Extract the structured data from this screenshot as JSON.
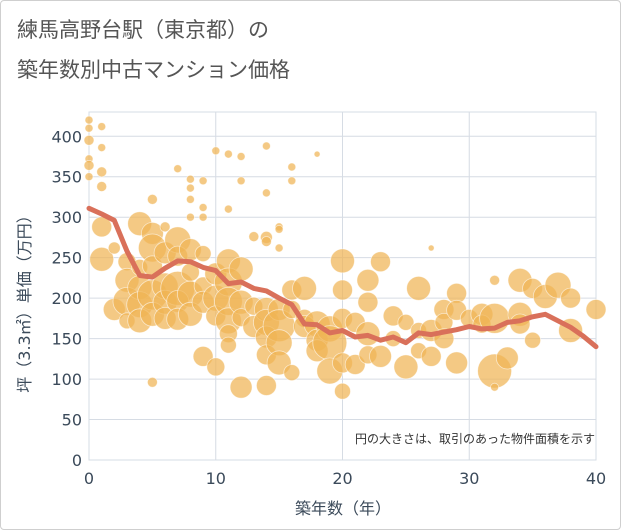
{
  "title_line1": "練馬高野台駅（東京都）の",
  "title_line2": "築年数別中古マンション価格",
  "chart_data": {
    "type": "scatter",
    "xlabel": "築年数（年）",
    "ylabel": "坪（3.3㎡）単価（万円）",
    "xlim": [
      0,
      40
    ],
    "ylim": [
      0,
      430
    ],
    "x_ticks": [
      "0",
      "10",
      "20",
      "30",
      "40"
    ],
    "y_ticks": [
      "0",
      "50",
      "100",
      "150",
      "200",
      "250",
      "300",
      "350",
      "400"
    ],
    "grid": true,
    "note": "円の大きさは、取引のあった物件面積を示す",
    "bubble_color": "#f0b454",
    "line_color": "#d9705a",
    "trend_line": {
      "x": [
        0,
        1,
        2,
        3,
        4,
        5,
        6,
        7,
        8,
        9,
        10,
        11,
        12,
        13,
        14,
        15,
        16,
        17,
        18,
        19,
        20,
        21,
        22,
        23,
        24,
        25,
        26,
        27,
        28,
        29,
        30,
        31,
        32,
        33,
        34,
        35,
        36,
        37,
        38,
        39,
        40
      ],
      "y": [
        311,
        304,
        296,
        258,
        228,
        226,
        237,
        246,
        245,
        238,
        234,
        218,
        220,
        212,
        209,
        200,
        192,
        168,
        167,
        157,
        160,
        152,
        154,
        148,
        152,
        145,
        157,
        155,
        158,
        161,
        165,
        162,
        163,
        170,
        172,
        177,
        180,
        172,
        164,
        153,
        140
      ]
    },
    "points": [
      {
        "x": 0,
        "y": 420,
        "s": 4
      },
      {
        "x": 0,
        "y": 410,
        "s": 4
      },
      {
        "x": 0,
        "y": 395,
        "s": 5
      },
      {
        "x": 0,
        "y": 372,
        "s": 4
      },
      {
        "x": 0,
        "y": 364,
        "s": 5
      },
      {
        "x": 0,
        "y": 350,
        "s": 4
      },
      {
        "x": 1,
        "y": 412,
        "s": 4
      },
      {
        "x": 1,
        "y": 386,
        "s": 4
      },
      {
        "x": 1,
        "y": 356,
        "s": 5
      },
      {
        "x": 1,
        "y": 338,
        "s": 5
      },
      {
        "x": 1,
        "y": 288,
        "s": 10
      },
      {
        "x": 1,
        "y": 248,
        "s": 12
      },
      {
        "x": 2,
        "y": 262,
        "s": 6
      },
      {
        "x": 2,
        "y": 186,
        "s": 11
      },
      {
        "x": 3,
        "y": 245,
        "s": 9
      },
      {
        "x": 3,
        "y": 222,
        "s": 12
      },
      {
        "x": 3,
        "y": 196,
        "s": 14
      },
      {
        "x": 3,
        "y": 172,
        "s": 8
      },
      {
        "x": 4,
        "y": 292,
        "s": 12
      },
      {
        "x": 4,
        "y": 238,
        "s": 8
      },
      {
        "x": 4,
        "y": 213,
        "s": 12
      },
      {
        "x": 4,
        "y": 192,
        "s": 13
      },
      {
        "x": 4,
        "y": 172,
        "s": 12
      },
      {
        "x": 5,
        "y": 322,
        "s": 5
      },
      {
        "x": 5,
        "y": 280,
        "s": 11
      },
      {
        "x": 5,
        "y": 262,
        "s": 14
      },
      {
        "x": 5,
        "y": 240,
        "s": 10
      },
      {
        "x": 5,
        "y": 204,
        "s": 15
      },
      {
        "x": 5,
        "y": 180,
        "s": 12
      },
      {
        "x": 5,
        "y": 96,
        "s": 5
      },
      {
        "x": 6,
        "y": 288,
        "s": 5
      },
      {
        "x": 6,
        "y": 256,
        "s": 11
      },
      {
        "x": 6,
        "y": 215,
        "s": 13
      },
      {
        "x": 6,
        "y": 195,
        "s": 12
      },
      {
        "x": 6,
        "y": 175,
        "s": 11
      },
      {
        "x": 7,
        "y": 360,
        "s": 4
      },
      {
        "x": 7,
        "y": 272,
        "s": 13
      },
      {
        "x": 7,
        "y": 252,
        "s": 10
      },
      {
        "x": 7,
        "y": 212,
        "s": 17
      },
      {
        "x": 7,
        "y": 196,
        "s": 11
      },
      {
        "x": 7,
        "y": 174,
        "s": 11
      },
      {
        "x": 8,
        "y": 347,
        "s": 4
      },
      {
        "x": 8,
        "y": 336,
        "s": 4
      },
      {
        "x": 8,
        "y": 322,
        "s": 4
      },
      {
        "x": 8,
        "y": 300,
        "s": 4
      },
      {
        "x": 8,
        "y": 260,
        "s": 11
      },
      {
        "x": 8,
        "y": 232,
        "s": 9
      },
      {
        "x": 8,
        "y": 205,
        "s": 13
      },
      {
        "x": 8,
        "y": 180,
        "s": 12
      },
      {
        "x": 9,
        "y": 345,
        "s": 4
      },
      {
        "x": 9,
        "y": 312,
        "s": 4
      },
      {
        "x": 9,
        "y": 300,
        "s": 4
      },
      {
        "x": 9,
        "y": 255,
        "s": 8
      },
      {
        "x": 9,
        "y": 215,
        "s": 9
      },
      {
        "x": 9,
        "y": 195,
        "s": 11
      },
      {
        "x": 9,
        "y": 128,
        "s": 10
      },
      {
        "x": 10,
        "y": 382,
        "s": 4
      },
      {
        "x": 10,
        "y": 230,
        "s": 11
      },
      {
        "x": 10,
        "y": 200,
        "s": 13
      },
      {
        "x": 10,
        "y": 178,
        "s": 10
      },
      {
        "x": 10,
        "y": 115,
        "s": 9
      },
      {
        "x": 11,
        "y": 378,
        "s": 4
      },
      {
        "x": 11,
        "y": 310,
        "s": 4
      },
      {
        "x": 11,
        "y": 246,
        "s": 12
      },
      {
        "x": 11,
        "y": 220,
        "s": 14
      },
      {
        "x": 11,
        "y": 196,
        "s": 14
      },
      {
        "x": 11,
        "y": 172,
        "s": 13
      },
      {
        "x": 11,
        "y": 156,
        "s": 9
      },
      {
        "x": 11,
        "y": 142,
        "s": 8
      },
      {
        "x": 12,
        "y": 375,
        "s": 4
      },
      {
        "x": 12,
        "y": 345,
        "s": 4
      },
      {
        "x": 12,
        "y": 236,
        "s": 12
      },
      {
        "x": 12,
        "y": 195,
        "s": 12
      },
      {
        "x": 12,
        "y": 176,
        "s": 9
      },
      {
        "x": 12,
        "y": 90,
        "s": 11
      },
      {
        "x": 13,
        "y": 276,
        "s": 5
      },
      {
        "x": 13,
        "y": 190,
        "s": 9
      },
      {
        "x": 13,
        "y": 165,
        "s": 11
      },
      {
        "x": 14,
        "y": 388,
        "s": 4
      },
      {
        "x": 14,
        "y": 330,
        "s": 4
      },
      {
        "x": 14,
        "y": 275,
        "s": 6
      },
      {
        "x": 14,
        "y": 270,
        "s": 5
      },
      {
        "x": 14,
        "y": 186,
        "s": 12
      },
      {
        "x": 14,
        "y": 170,
        "s": 13
      },
      {
        "x": 14,
        "y": 152,
        "s": 11
      },
      {
        "x": 14,
        "y": 130,
        "s": 10
      },
      {
        "x": 14,
        "y": 92,
        "s": 10
      },
      {
        "x": 15,
        "y": 288,
        "s": 4
      },
      {
        "x": 15,
        "y": 285,
        "s": 4
      },
      {
        "x": 15,
        "y": 262,
        "s": 4
      },
      {
        "x": 15,
        "y": 186,
        "s": 11
      },
      {
        "x": 15,
        "y": 166,
        "s": 16
      },
      {
        "x": 15,
        "y": 145,
        "s": 13
      },
      {
        "x": 15,
        "y": 120,
        "s": 12
      },
      {
        "x": 16,
        "y": 362,
        "s": 4
      },
      {
        "x": 16,
        "y": 345,
        "s": 4
      },
      {
        "x": 16,
        "y": 210,
        "s": 10
      },
      {
        "x": 16,
        "y": 186,
        "s": 9
      },
      {
        "x": 16,
        "y": 108,
        "s": 8
      },
      {
        "x": 17,
        "y": 212,
        "s": 12
      },
      {
        "x": 17,
        "y": 175,
        "s": 9
      },
      {
        "x": 17,
        "y": 165,
        "s": 11
      },
      {
        "x": 18,
        "y": 378,
        "s": 3
      },
      {
        "x": 18,
        "y": 168,
        "s": 13
      },
      {
        "x": 18,
        "y": 148,
        "s": 11
      },
      {
        "x": 18,
        "y": 135,
        "s": 11
      },
      {
        "x": 19,
        "y": 162,
        "s": 13
      },
      {
        "x": 19,
        "y": 145,
        "s": 17
      },
      {
        "x": 19,
        "y": 110,
        "s": 13
      },
      {
        "x": 20,
        "y": 246,
        "s": 12
      },
      {
        "x": 20,
        "y": 210,
        "s": 10
      },
      {
        "x": 20,
        "y": 175,
        "s": 10
      },
      {
        "x": 20,
        "y": 120,
        "s": 10
      },
      {
        "x": 20,
        "y": 85,
        "s": 8
      },
      {
        "x": 21,
        "y": 170,
        "s": 10
      },
      {
        "x": 21,
        "y": 118,
        "s": 10
      },
      {
        "x": 22,
        "y": 222,
        "s": 11
      },
      {
        "x": 22,
        "y": 195,
        "s": 10
      },
      {
        "x": 22,
        "y": 156,
        "s": 12
      },
      {
        "x": 22,
        "y": 130,
        "s": 9
      },
      {
        "x": 23,
        "y": 245,
        "s": 10
      },
      {
        "x": 23,
        "y": 128,
        "s": 11
      },
      {
        "x": 24,
        "y": 178,
        "s": 10
      },
      {
        "x": 24,
        "y": 150,
        "s": 8
      },
      {
        "x": 25,
        "y": 170,
        "s": 8
      },
      {
        "x": 25,
        "y": 115,
        "s": 12
      },
      {
        "x": 26,
        "y": 212,
        "s": 12
      },
      {
        "x": 26,
        "y": 160,
        "s": 8
      },
      {
        "x": 26,
        "y": 135,
        "s": 8
      },
      {
        "x": 27,
        "y": 262,
        "s": 3
      },
      {
        "x": 27,
        "y": 160,
        "s": 11
      },
      {
        "x": 27,
        "y": 128,
        "s": 10
      },
      {
        "x": 28,
        "y": 186,
        "s": 10
      },
      {
        "x": 28,
        "y": 170,
        "s": 9
      },
      {
        "x": 28,
        "y": 150,
        "s": 10
      },
      {
        "x": 29,
        "y": 206,
        "s": 10
      },
      {
        "x": 29,
        "y": 185,
        "s": 10
      },
      {
        "x": 29,
        "y": 120,
        "s": 11
      },
      {
        "x": 30,
        "y": 175,
        "s": 9
      },
      {
        "x": 31,
        "y": 180,
        "s": 11
      },
      {
        "x": 31,
        "y": 168,
        "s": 9
      },
      {
        "x": 32,
        "y": 222,
        "s": 5
      },
      {
        "x": 32,
        "y": 175,
        "s": 15
      },
      {
        "x": 32,
        "y": 110,
        "s": 17
      },
      {
        "x": 32,
        "y": 90,
        "s": 4
      },
      {
        "x": 33,
        "y": 126,
        "s": 11
      },
      {
        "x": 34,
        "y": 222,
        "s": 12
      },
      {
        "x": 34,
        "y": 180,
        "s": 12
      },
      {
        "x": 34,
        "y": 168,
        "s": 10
      },
      {
        "x": 35,
        "y": 212,
        "s": 10
      },
      {
        "x": 35,
        "y": 148,
        "s": 8
      },
      {
        "x": 36,
        "y": 202,
        "s": 12
      },
      {
        "x": 37,
        "y": 216,
        "s": 13
      },
      {
        "x": 38,
        "y": 200,
        "s": 10
      },
      {
        "x": 38,
        "y": 160,
        "s": 12
      },
      {
        "x": 40,
        "y": 186,
        "s": 10
      }
    ]
  }
}
